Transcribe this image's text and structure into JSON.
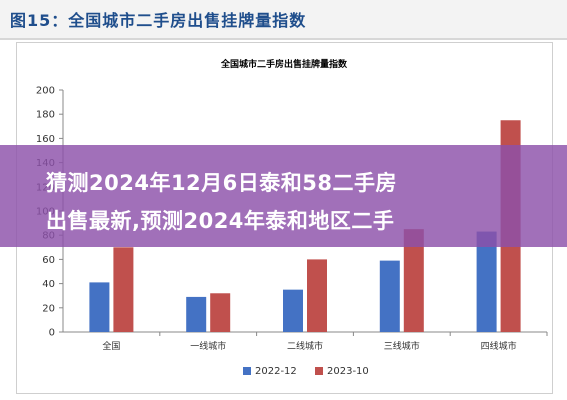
{
  "header": {
    "title": "图15：全国城市二手房出售挂牌量指数"
  },
  "overlay": {
    "line1": "猜测2024年12月6日泰和58二手房",
    "line2": "出售最新,预测2024年泰和地区二手"
  },
  "colors": {
    "series1": "#4472c4",
    "series2": "#c0504d",
    "overlay": "#8c50aa",
    "title": "#1f4e8c"
  },
  "chart_data": {
    "type": "bar",
    "title": "全国城市二手房出售挂牌量指数",
    "categories": [
      "全国",
      "一线城市",
      "二线城市",
      "三线城市",
      "四线城市"
    ],
    "series": [
      {
        "name": "2022-12",
        "values": [
          41,
          29,
          35,
          59,
          83
        ]
      },
      {
        "name": "2023-10",
        "values": [
          70,
          32,
          60,
          85,
          175
        ]
      }
    ],
    "yticks": [
      "0",
      "20",
      "40",
      "60",
      "80",
      "100",
      "120",
      "140",
      "160",
      "180",
      "200"
    ],
    "ylim": [
      0,
      200
    ],
    "legend": "bottom",
    "grid": false
  }
}
